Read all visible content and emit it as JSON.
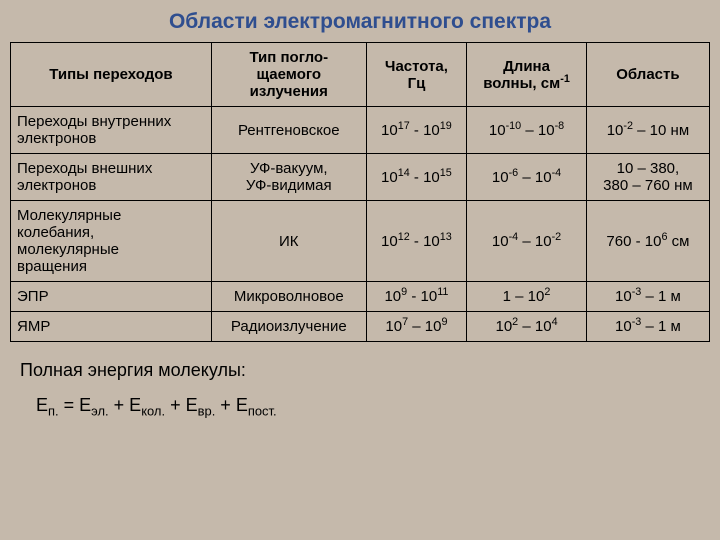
{
  "title": "Области электромагнитного спектра",
  "headers": {
    "c1": "Типы переходов",
    "c2_l1": "Тип погло-",
    "c2_l2": "щаемого",
    "c2_l3": "излучения",
    "c3_l1": "Частота,",
    "c3_l2": "Гц",
    "c4_l1": "Длина",
    "c4_l2": "волны, см",
    "c4_sup": "-1",
    "c5": "Область"
  },
  "rows": [
    {
      "c1_l1": "Переходы внутренних",
      "c1_l2": "электронов",
      "c2": "Рентгеновское",
      "c3_a": "10",
      "c3_ae": "17",
      "c3_sep": " - ",
      "c3_b": "10",
      "c3_be": "19",
      "c4_a": "10",
      "c4_ae": "-10",
      "c4_sep": " – ",
      "c4_b": "10",
      "c4_be": "-8",
      "c5_a": "10",
      "c5_ae": "-2",
      "c5_rest": " – 10 нм"
    },
    {
      "c1_l1": "Переходы внешних",
      "c1_l2": "электронов",
      "c2_l1": "УФ-вакуум,",
      "c2_l2": "УФ-видимая",
      "c3_a": "10",
      "c3_ae": "14",
      "c3_sep": " - ",
      "c3_b": "10",
      "c3_be": "15",
      "c4_a": "10",
      "c4_ae": "-6",
      "c4_sep": " – ",
      "c4_b": "10",
      "c4_be": "-4",
      "c5_l1": "10 – 380,",
      "c5_l2": "380 – 760 нм"
    },
    {
      "c1_l1": "Молекулярные",
      "c1_l2": "колебания,",
      "c1_l3": "молекулярные",
      "c1_l4": "вращения",
      "c2": "ИК",
      "c3_a": "10",
      "c3_ae": "12",
      "c3_sep": " - ",
      "c3_b": "10",
      "c3_be": "13",
      "c4_a": "10",
      "c4_ae": "-4",
      "c4_sep": " – ",
      "c4_b": "10",
      "c4_be": "-2",
      "c5_pre": "760 - 10",
      "c5_e": "6",
      "c5_post": " см"
    },
    {
      "c1": "ЭПР",
      "c2": "Микроволновое",
      "c3_a": "10",
      "c3_ae": "9",
      "c3_sep": " - ",
      "c3_b": "10",
      "c3_be": "11",
      "c4_l": "1 – 10",
      "c4_e": "2",
      "c5_a": "10",
      "c5_ae": "-3",
      "c5_rest": " – 1 м"
    },
    {
      "c1": "ЯМР",
      "c2": "Радиоизлучение",
      "c3_a": "10",
      "c3_ae": "7",
      "c3_sep": " – ",
      "c3_b": "10",
      "c3_be": "9",
      "c4_a": "10",
      "c4_ae": "2",
      "c4_sep": " – ",
      "c4_b": "10",
      "c4_be": "4",
      "c5_a": "10",
      "c5_ae": "-3",
      "c5_rest": " – 1 м"
    }
  ],
  "bottom_text": "Полная энергия молекулы:",
  "formula": {
    "E": "Е",
    "eq": " = ",
    "plus": " + ",
    "s0": "п.",
    "s1": "эл.",
    "s2": "кол.",
    "s3": "вр.",
    "s4": "пост."
  }
}
